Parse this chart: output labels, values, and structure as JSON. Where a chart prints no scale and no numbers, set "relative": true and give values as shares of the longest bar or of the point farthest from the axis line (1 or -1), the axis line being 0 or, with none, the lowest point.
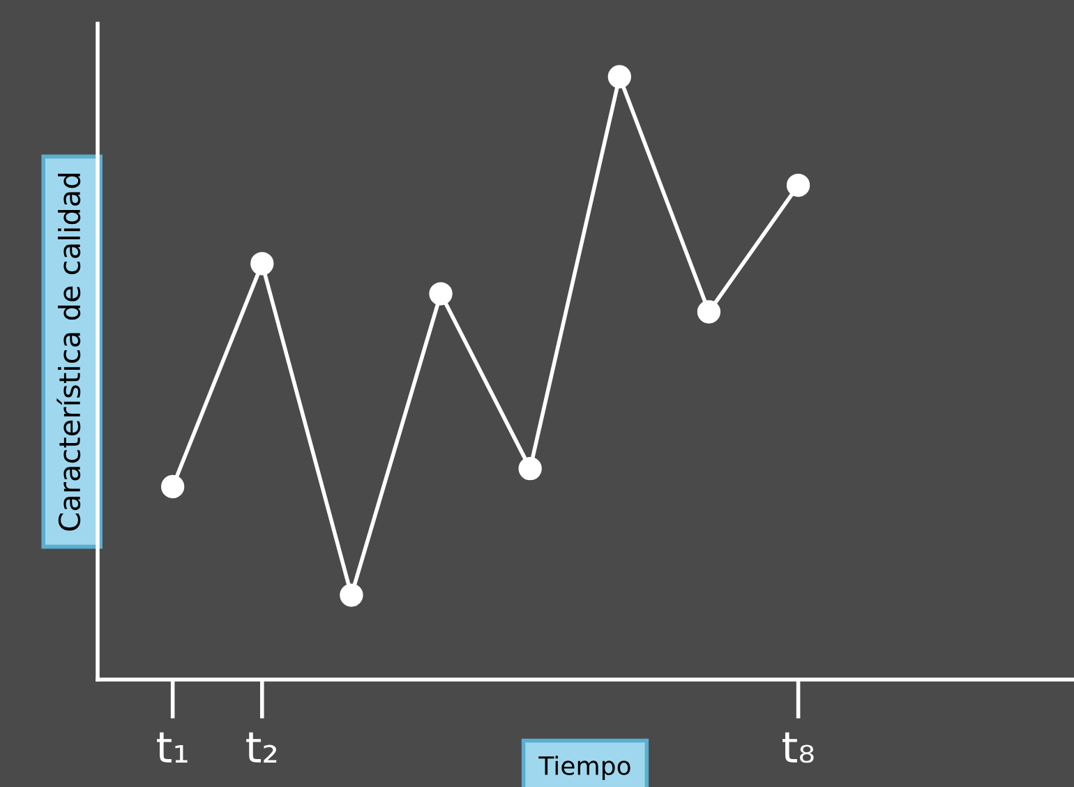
{
  "chart_data": {
    "type": "line",
    "relative": true,
    "xlabel": "Tiempo",
    "ylabel": "Característica de calidad",
    "categories": [
      "t₁",
      "t₂",
      null,
      null,
      null,
      null,
      null,
      "t₈"
    ],
    "series": [
      {
        "color": "#ffffff",
        "values": [
          0.32,
          0.69,
          0.14,
          0.64,
          0.35,
          1.0,
          0.61,
          0.82
        ]
      }
    ],
    "marker": "circle",
    "line_style": "solid",
    "grid": false,
    "legend": false
  }
}
